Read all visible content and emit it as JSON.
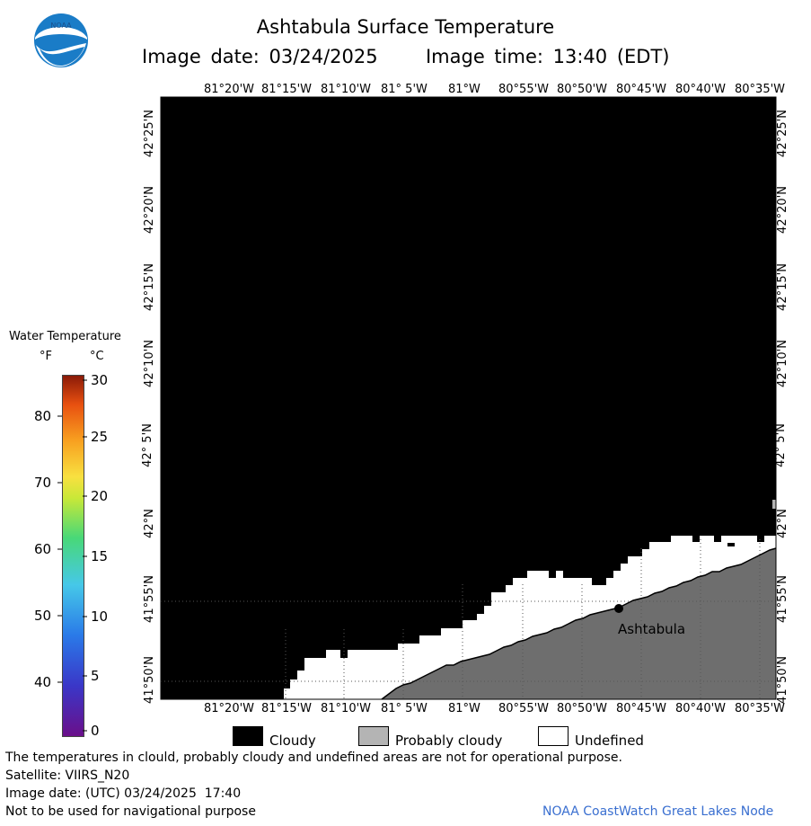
{
  "header": {
    "title": "Ashtabula Surface Temperature",
    "image_date_label": "Image date: 03/24/2025",
    "image_time_label": "Image time: 13:40 (EDT)"
  },
  "logo": {
    "text": "NOAA"
  },
  "map": {
    "lon_labels": [
      "81°20'W",
      "81°15'W",
      "81°10'W",
      "81° 5'W",
      "81°W",
      "80°55'W",
      "80°50'W",
      "80°45'W",
      "80°40'W",
      "80°35'W"
    ],
    "lat_labels": [
      "42°25'N",
      "42°20'N",
      "42°15'N",
      "42°10'N",
      "42° 5'N",
      "42°N",
      "41°55'N",
      "41°50'N"
    ],
    "city_label": "Ashtabula",
    "colors": {
      "cloud": "#000000",
      "land": "#6e6e6e",
      "undefined": "#ffffff"
    }
  },
  "colorbar": {
    "title": "Water Temperature",
    "unit_f": "°F",
    "unit_c": "°C",
    "f_ticks": [
      "80",
      "70",
      "60",
      "50",
      "40"
    ],
    "c_ticks": [
      "30",
      "25",
      "20",
      "15",
      "10",
      "5",
      "0"
    ]
  },
  "legend": {
    "cloudy": "Cloudy",
    "probably_cloudy": "Probably cloudy",
    "undefined": "Undefined",
    "colors": {
      "cloudy": "#000000",
      "probably_cloudy": "#b4b4b4",
      "undefined": "#ffffff"
    }
  },
  "footer": {
    "disclaimer": "The temperatures in clould, probably cloudy and undefined areas are not for operational purpose.",
    "satellite": "Satellite: VIIRS_N20",
    "utc_date": "Image date: (UTC) 03/24/2025  17:40",
    "nav_warning": "Not to be used for navigational purpose",
    "credit": "NOAA CoastWatch Great Lakes Node"
  }
}
